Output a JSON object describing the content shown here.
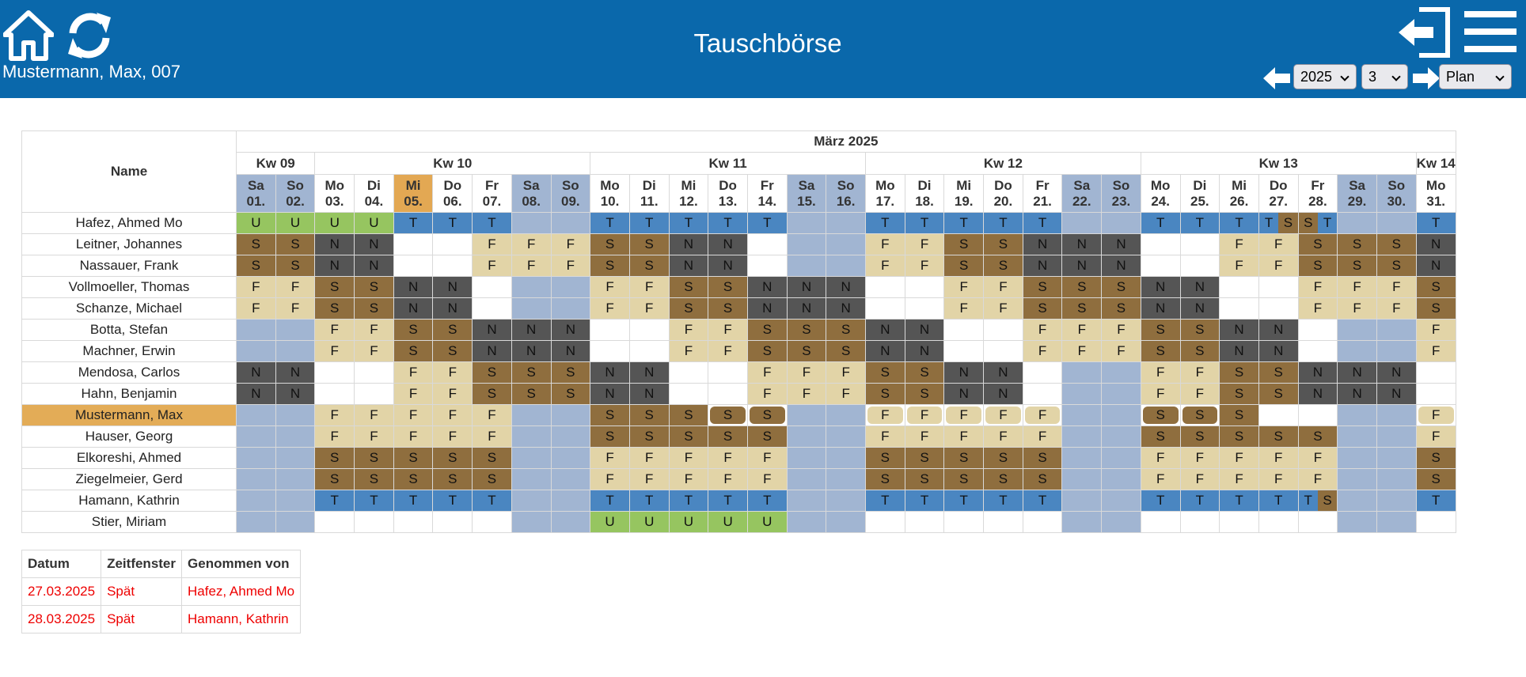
{
  "header": {
    "title": "Tauschbörse",
    "user": "Mustermann, Max, 007",
    "year_select": "2025",
    "month_select": "3",
    "view_select": "Plan",
    "icons": [
      "home-icon",
      "refresh-icon",
      "logout-icon",
      "menu-icon",
      "arrow-left-icon",
      "arrow-right-icon"
    ]
  },
  "colors": {
    "header_bg": "#0a68ab",
    "T": "#4a86c1",
    "U": "#96c560",
    "S": "#8f6e3e",
    "F": "#e2d4a7",
    "N": "#555555",
    "weekend": "#a1b5d2",
    "today": "#e3a853",
    "taken_text": "#ee0000"
  },
  "plan": {
    "name_header": "Name",
    "month_label": "März 2025",
    "weeks": [
      {
        "label": "Kw 09",
        "days": 2
      },
      {
        "label": "Kw 10",
        "days": 7
      },
      {
        "label": "Kw 11",
        "days": 7
      },
      {
        "label": "Kw 12",
        "days": 7
      },
      {
        "label": "Kw 13",
        "days": 7
      },
      {
        "label": "Kw 14",
        "days": 1
      }
    ],
    "days": [
      {
        "dow": "Sa",
        "date": "01.",
        "we": true
      },
      {
        "dow": "So",
        "date": "02.",
        "we": true
      },
      {
        "dow": "Mo",
        "date": "03."
      },
      {
        "dow": "Di",
        "date": "04."
      },
      {
        "dow": "Mi",
        "date": "05.",
        "today": true
      },
      {
        "dow": "Do",
        "date": "06."
      },
      {
        "dow": "Fr",
        "date": "07."
      },
      {
        "dow": "Sa",
        "date": "08.",
        "we": true
      },
      {
        "dow": "So",
        "date": "09.",
        "we": true
      },
      {
        "dow": "Mo",
        "date": "10."
      },
      {
        "dow": "Di",
        "date": "11."
      },
      {
        "dow": "Mi",
        "date": "12."
      },
      {
        "dow": "Do",
        "date": "13."
      },
      {
        "dow": "Fr",
        "date": "14."
      },
      {
        "dow": "Sa",
        "date": "15.",
        "we": true
      },
      {
        "dow": "So",
        "date": "16.",
        "we": true
      },
      {
        "dow": "Mo",
        "date": "17."
      },
      {
        "dow": "Di",
        "date": "18."
      },
      {
        "dow": "Mi",
        "date": "19."
      },
      {
        "dow": "Do",
        "date": "20."
      },
      {
        "dow": "Fr",
        "date": "21."
      },
      {
        "dow": "Sa",
        "date": "22.",
        "we": true
      },
      {
        "dow": "So",
        "date": "23.",
        "we": true
      },
      {
        "dow": "Mo",
        "date": "24."
      },
      {
        "dow": "Di",
        "date": "25."
      },
      {
        "dow": "Mi",
        "date": "26."
      },
      {
        "dow": "Do",
        "date": "27."
      },
      {
        "dow": "Fr",
        "date": "28."
      },
      {
        "dow": "Sa",
        "date": "29.",
        "we": true
      },
      {
        "dow": "So",
        "date": "30.",
        "we": true
      },
      {
        "dow": "Mo",
        "date": "31."
      }
    ],
    "rows": [
      {
        "name": "Hafez, Ahmed Mo",
        "shifts": [
          "U",
          "U",
          "U",
          "U",
          "T",
          "T",
          "T",
          "W",
          "W",
          "T",
          "T",
          "T",
          "T",
          "T",
          "W",
          "W",
          "T",
          "T",
          "T",
          "T",
          "T",
          "W",
          "W",
          "T",
          "T",
          "T",
          "T|S",
          "S|T",
          "W",
          "W",
          "T"
        ]
      },
      {
        "name": "Leitner, Johannes",
        "shifts": [
          "S",
          "S",
          "N",
          "N",
          "",
          "",
          "F",
          "F",
          "F",
          "S",
          "S",
          "N",
          "N",
          "",
          "W",
          "W",
          "F",
          "F",
          "S",
          "S",
          "N",
          "N",
          "N",
          "",
          "",
          "F",
          "F",
          "S",
          "S",
          "S",
          "N"
        ]
      },
      {
        "name": "Nassauer, Frank",
        "shifts": [
          "S",
          "S",
          "N",
          "N",
          "",
          "",
          "F",
          "F",
          "F",
          "S",
          "S",
          "N",
          "N",
          "",
          "W",
          "W",
          "F",
          "F",
          "S",
          "S",
          "N",
          "N",
          "N",
          "",
          "",
          "F",
          "F",
          "S",
          "S",
          "S",
          "N"
        ]
      },
      {
        "name": "Vollmoeller, Thomas",
        "shifts": [
          "F",
          "F",
          "S",
          "S",
          "N",
          "N",
          "",
          "W",
          "W",
          "F",
          "F",
          "S",
          "S",
          "N",
          "N",
          "N",
          "",
          "",
          "F",
          "F",
          "S",
          "S",
          "S",
          "N",
          "N",
          "",
          "",
          "F",
          "F",
          "F",
          "S"
        ]
      },
      {
        "name": "Schanze, Michael",
        "shifts": [
          "F",
          "F",
          "S",
          "S",
          "N",
          "N",
          "",
          "W",
          "W",
          "F",
          "F",
          "S",
          "S",
          "N",
          "N",
          "N",
          "",
          "",
          "F",
          "F",
          "S",
          "S",
          "S",
          "N",
          "N",
          "",
          "",
          "F",
          "F",
          "F",
          "S"
        ]
      },
      {
        "name": "Botta, Stefan",
        "shifts": [
          "W",
          "W",
          "F",
          "F",
          "S",
          "S",
          "N",
          "N",
          "N",
          "",
          "",
          "F",
          "F",
          "S",
          "S",
          "S",
          "N",
          "N",
          "",
          "",
          "F",
          "F",
          "F",
          "S",
          "S",
          "N",
          "N",
          "",
          "W",
          "W",
          "F"
        ]
      },
      {
        "name": "Machner, Erwin",
        "shifts": [
          "W",
          "W",
          "F",
          "F",
          "S",
          "S",
          "N",
          "N",
          "N",
          "",
          "",
          "F",
          "F",
          "S",
          "S",
          "S",
          "N",
          "N",
          "",
          "",
          "F",
          "F",
          "F",
          "S",
          "S",
          "N",
          "N",
          "",
          "W",
          "W",
          "F"
        ]
      },
      {
        "name": "Mendosa, Carlos",
        "shifts": [
          "N",
          "N",
          "",
          "",
          "F",
          "F",
          "S",
          "S",
          "S",
          "N",
          "N",
          "",
          "",
          "F",
          "F",
          "F",
          "S",
          "S",
          "N",
          "N",
          "",
          "W",
          "W",
          "F",
          "F",
          "S",
          "S",
          "N",
          "N",
          "N",
          ""
        ]
      },
      {
        "name": "Hahn, Benjamin",
        "shifts": [
          "N",
          "N",
          "",
          "",
          "F",
          "F",
          "S",
          "S",
          "S",
          "N",
          "N",
          "",
          "",
          "F",
          "F",
          "F",
          "S",
          "S",
          "N",
          "N",
          "",
          "W",
          "W",
          "F",
          "F",
          "S",
          "S",
          "N",
          "N",
          "N",
          ""
        ]
      },
      {
        "name": "Mustermann, Max",
        "me": true,
        "shifts": [
          "W",
          "W",
          "F",
          "F",
          "F",
          "F",
          "F",
          "W",
          "W",
          "S",
          "S",
          "S",
          "S*",
          "S*",
          "W",
          "W",
          "F*",
          "F*",
          "F*",
          "F*",
          "F*",
          "W",
          "W",
          "S*",
          "S*",
          "S",
          "",
          "",
          "W",
          "W",
          "F*"
        ]
      },
      {
        "name": "Hauser, Georg",
        "shifts": [
          "W",
          "W",
          "F",
          "F",
          "F",
          "F",
          "F",
          "W",
          "W",
          "S",
          "S",
          "S",
          "S",
          "S",
          "W",
          "W",
          "F",
          "F",
          "F",
          "F",
          "F",
          "W",
          "W",
          "S",
          "S",
          "S",
          "S",
          "S",
          "W",
          "W",
          "F"
        ]
      },
      {
        "name": "Elkoreshi, Ahmed",
        "shifts": [
          "W",
          "W",
          "S",
          "S",
          "S",
          "S",
          "S",
          "W",
          "W",
          "F",
          "F",
          "F",
          "F",
          "F",
          "W",
          "W",
          "S",
          "S",
          "S",
          "S",
          "S",
          "W",
          "W",
          "F",
          "F",
          "F",
          "F",
          "F",
          "W",
          "W",
          "S"
        ]
      },
      {
        "name": "Ziegelmeier, Gerd",
        "shifts": [
          "W",
          "W",
          "S",
          "S",
          "S",
          "S",
          "S",
          "W",
          "W",
          "F",
          "F",
          "F",
          "F",
          "F",
          "W",
          "W",
          "S",
          "S",
          "S",
          "S",
          "S",
          "W",
          "W",
          "F",
          "F",
          "F",
          "F",
          "F",
          "W",
          "W",
          "S"
        ]
      },
      {
        "name": "Hamann, Kathrin",
        "shifts": [
          "W",
          "W",
          "T",
          "T",
          "T",
          "T",
          "T",
          "W",
          "W",
          "T",
          "T",
          "T",
          "T",
          "T",
          "W",
          "W",
          "T",
          "T",
          "T",
          "T",
          "T",
          "W",
          "W",
          "T",
          "T",
          "T",
          "T",
          "T|S",
          "W",
          "W",
          "T"
        ]
      },
      {
        "name": "Stier, Miriam",
        "shifts": [
          "W",
          "W",
          "",
          "",
          "",
          "",
          "",
          "W",
          "W",
          "U",
          "U",
          "U",
          "U",
          "U",
          "W",
          "W",
          "",
          "",
          "",
          "",
          "",
          "W",
          "W",
          "",
          "",
          "",
          "",
          "",
          "W",
          "W",
          ""
        ]
      }
    ]
  },
  "taken": {
    "headers": [
      "Datum",
      "Zeitfenster",
      "Genommen von"
    ],
    "rows": [
      [
        "27.03.2025",
        "Spät",
        "Hafez, Ahmed Mo"
      ],
      [
        "28.03.2025",
        "Spät",
        "Hamann, Kathrin"
      ]
    ]
  }
}
